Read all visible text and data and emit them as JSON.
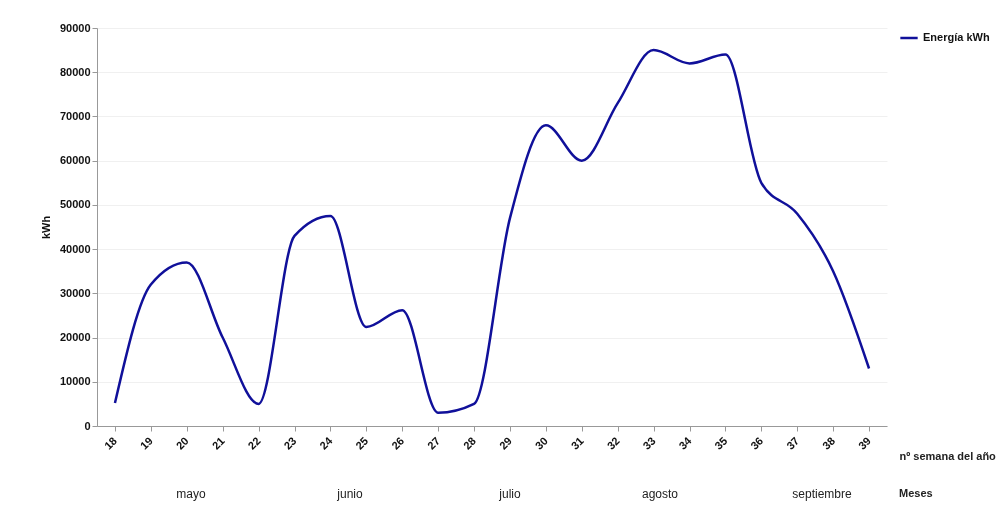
{
  "chart_data": {
    "type": "line",
    "xlabel": "nº semana  del año",
    "ylabel": "kWh",
    "categories": [
      "18",
      "19",
      "20",
      "21",
      "22",
      "23",
      "24",
      "25",
      "26",
      "27",
      "28",
      "29",
      "30",
      "31",
      "32",
      "33",
      "34",
      "35",
      "36",
      "37",
      "38",
      "39"
    ],
    "series": [
      {
        "name": "Energía kWh",
        "color": "#10109a",
        "values": [
          5200,
          32000,
          37000,
          20000,
          5000,
          43000,
          47500,
          22400,
          26200,
          3000,
          5000,
          47000,
          68000,
          60000,
          73000,
          85000,
          82000,
          84000,
          55000,
          48000,
          35000,
          13000
        ]
      }
    ],
    "ylim": [
      0,
      90000
    ],
    "yticks": [
      0,
      10000,
      20000,
      30000,
      40000,
      50000,
      60000,
      70000,
      80000,
      90000
    ],
    "grid": "y",
    "legend": "right",
    "marker": "none",
    "line_style": "solid",
    "annotations": [
      "mayo",
      "junio",
      "julio",
      "agosto",
      "septiembre",
      "Meses"
    ]
  }
}
